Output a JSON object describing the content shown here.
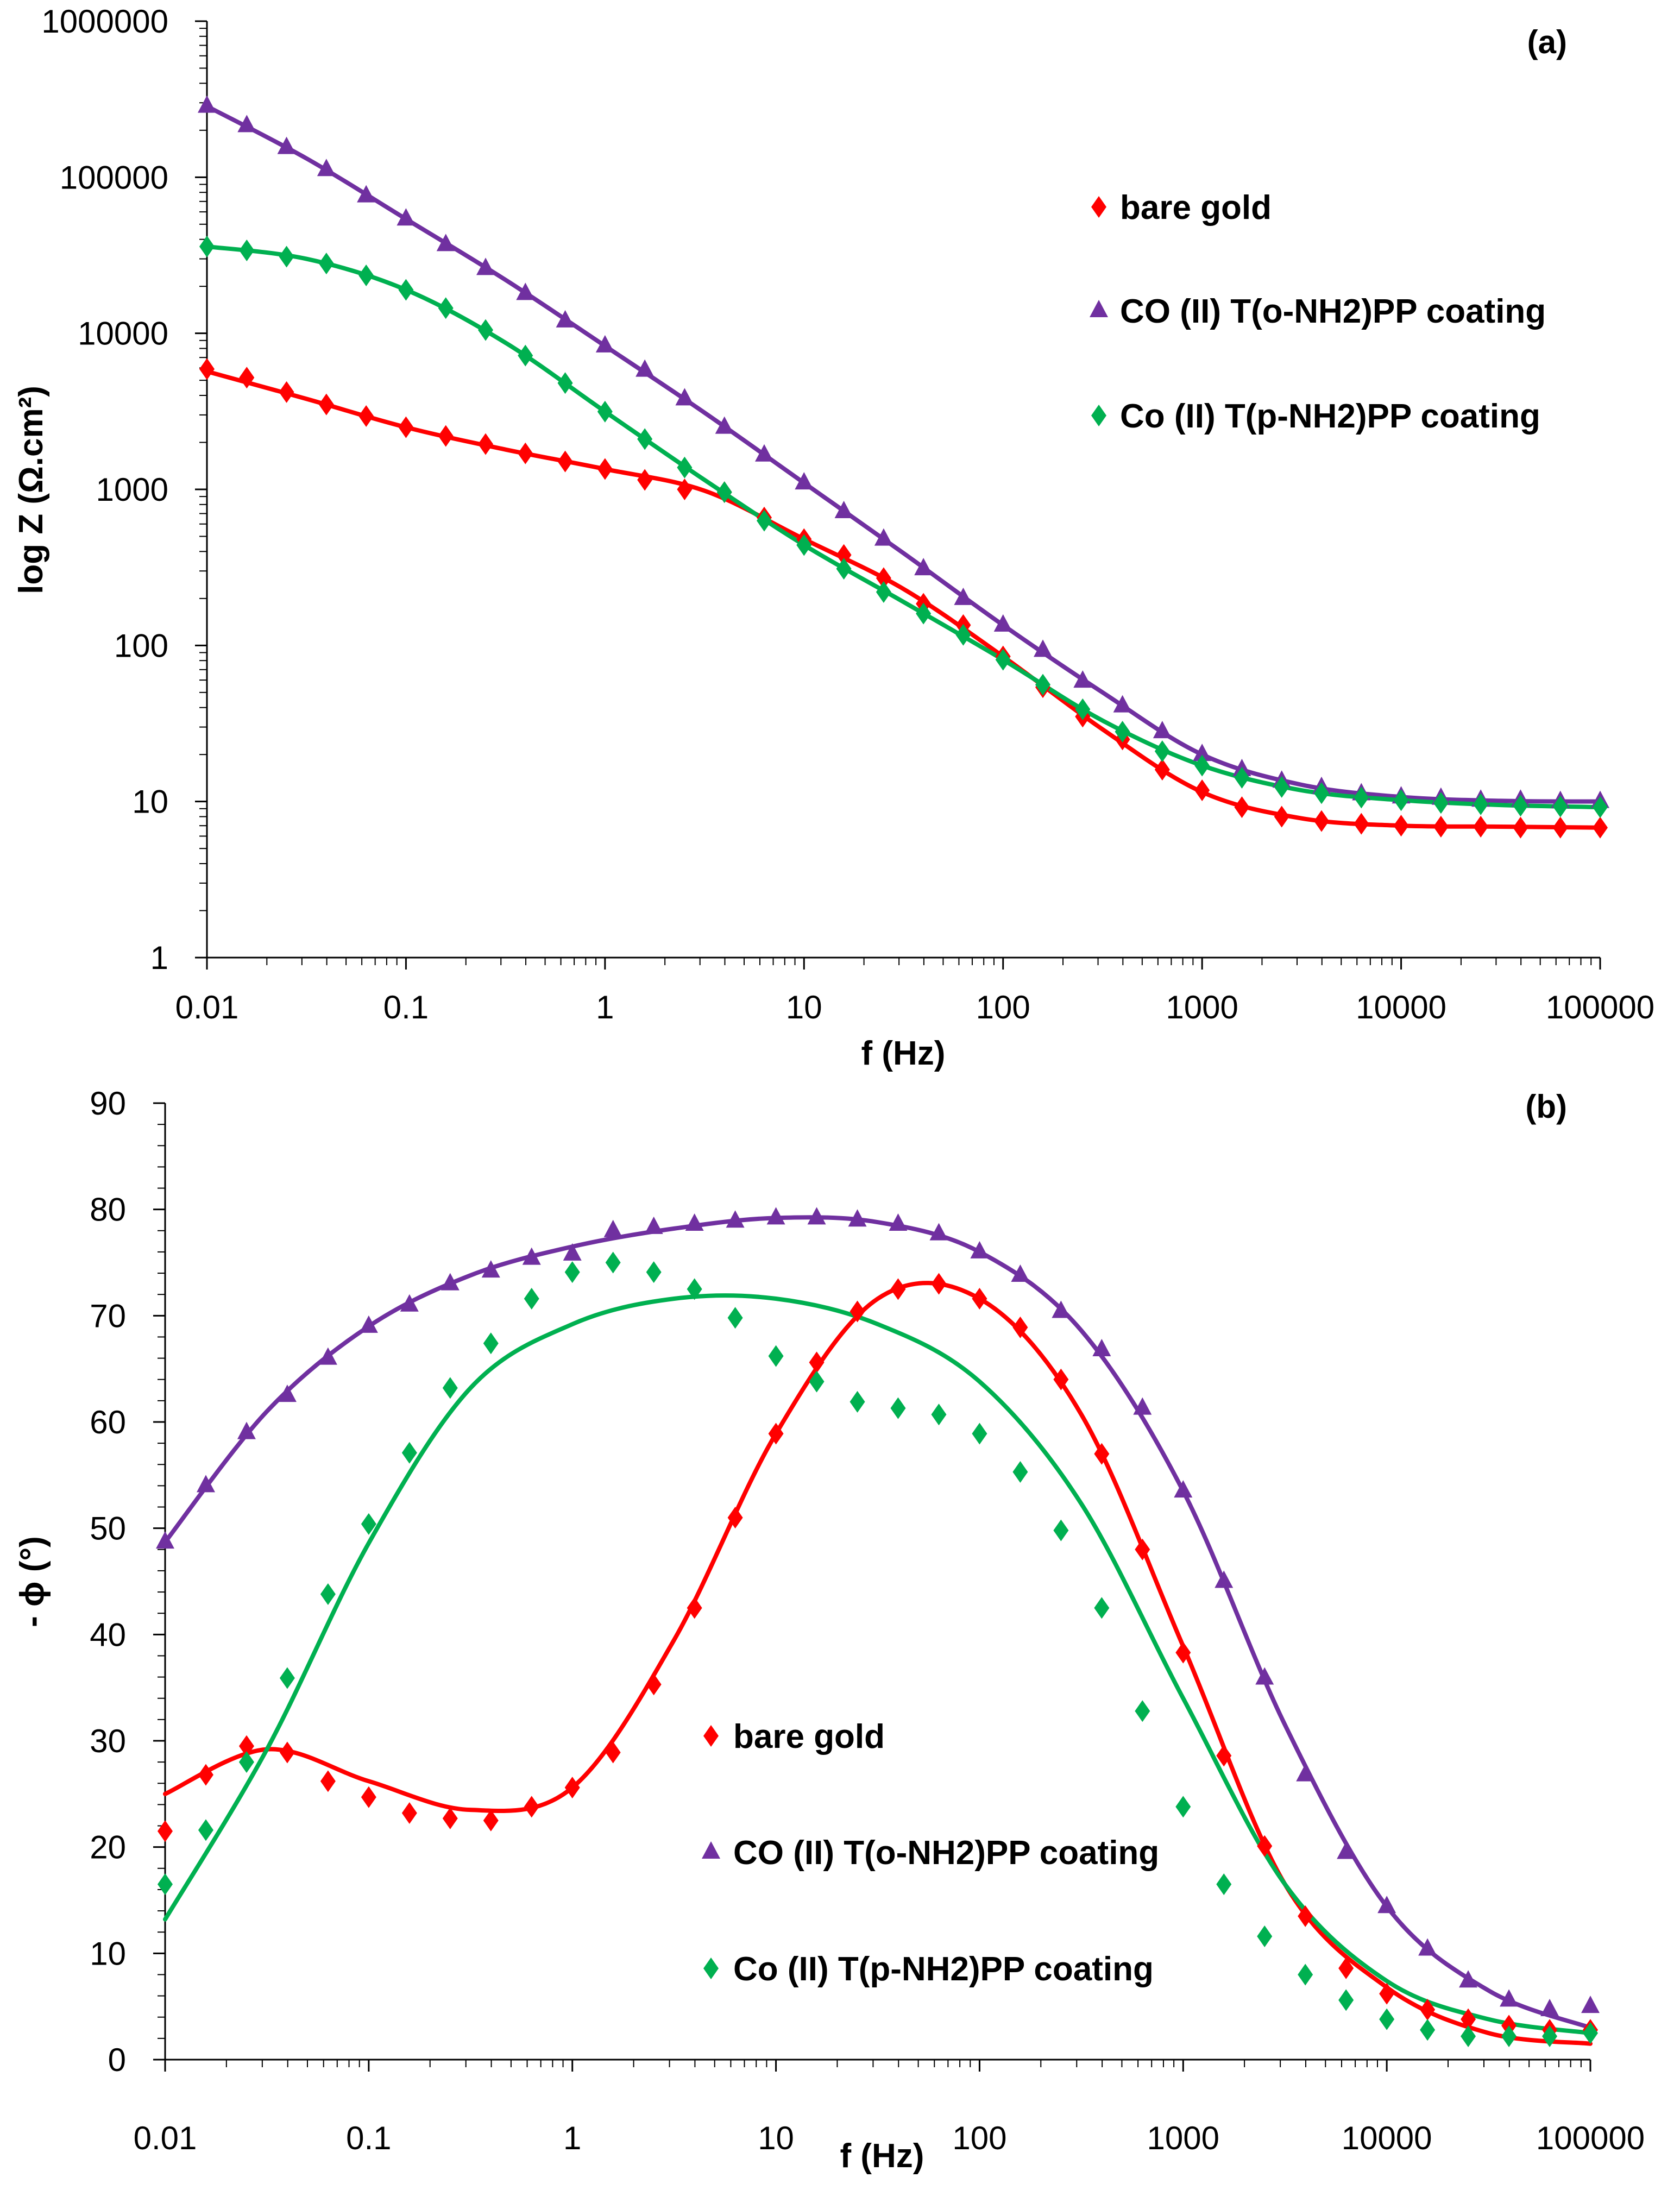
{
  "chart_data": [
    {
      "type": "scatter",
      "panel_label": "(a)",
      "xlabel": "f (Hz)",
      "ylabel": "log Z (Ω.cm²)",
      "xscale": "log",
      "yscale": "log",
      "xlim": [
        0.01,
        100000
      ],
      "ylim": [
        1,
        1000000
      ],
      "xticks": [
        "0.01",
        "0.1",
        "1",
        "10",
        "100",
        "1000",
        "10000",
        "100000"
      ],
      "yticks": [
        "1",
        "10",
        "100",
        "1000",
        "10000",
        "100000",
        "1000000"
      ],
      "legend_position": "upper-right",
      "x_log10": [
        -2,
        -1.8,
        -1.6,
        -1.4,
        -1.2,
        -1,
        -0.8,
        -0.6,
        -0.4,
        -0.2,
        0,
        0.2,
        0.4,
        0.6,
        0.8,
        1,
        1.2,
        1.4,
        1.6,
        1.8,
        2,
        2.2,
        2.4,
        2.6,
        2.8,
        3,
        3.2,
        3.4,
        3.6,
        3.8,
        4,
        4.2,
        4.4,
        4.6,
        4.8,
        5
      ],
      "fit_x_log10": [
        -2,
        -1.5,
        -1,
        -0.5,
        0,
        0.5,
        1,
        1.5,
        2,
        2.5,
        3,
        3.5,
        4,
        4.5,
        5
      ],
      "series": [
        {
          "name": "bare gold",
          "marker": "diamond",
          "color": "#ff0000",
          "values": [
            5900,
            5200,
            4200,
            3500,
            2950,
            2500,
            2200,
            1950,
            1700,
            1510,
            1350,
            1150,
            1000,
            960,
            660,
            480,
            380,
            270,
            185,
            135,
            85,
            54,
            35,
            25,
            16,
            11.8,
            9.2,
            8.0,
            7.5,
            7.2,
            7.0,
            6.9,
            6.9,
            6.8,
            6.8,
            6.8
          ],
          "fit": [
            5700,
            3800,
            2500,
            1800,
            1350,
            980,
            480,
            230,
            85,
            29,
            11.5,
            7.8,
            7.0,
            6.9,
            6.8
          ]
        },
        {
          "name": "CO (II) T(o-NH2)PP coating",
          "marker": "triangle",
          "color": "#7030a0",
          "values": [
            285000,
            214000,
            155000,
            112000,
            76000,
            54000,
            37000,
            26000,
            18000,
            12000,
            8300,
            5800,
            3800,
            2500,
            1660,
            1100,
            720,
            480,
            310,
            200,
            135,
            93,
            59,
            41,
            28,
            20,
            16,
            13.5,
            12.3,
            11.2,
            10.7,
            10.5,
            10.2,
            10.2,
            10.0,
            10.0
          ],
          "fit": [
            285000,
            132000,
            54000,
            22000,
            8300,
            3100,
            1100,
            390,
            135,
            50,
            20,
            12.8,
            10.7,
            10.1,
            10
          ]
        },
        {
          "name": "Co (II) T(p-NH2)PP coating",
          "marker": "diamond",
          "color": "#00b050",
          "values": [
            36000,
            34000,
            31000,
            28000,
            23500,
            19000,
            14500,
            10500,
            7200,
            4800,
            3150,
            2100,
            1380,
            960,
            630,
            440,
            310,
            220,
            160,
            117,
            81,
            56,
            39,
            28,
            21,
            17,
            14.2,
            12.4,
            11.3,
            10.6,
            10.2,
            9.8,
            9.6,
            9.4,
            9.3,
            9.2
          ],
          "fit": [
            36000,
            30000,
            19000,
            8700,
            3150,
            1150,
            440,
            190,
            81,
            33,
            17,
            11.8,
            10.2,
            9.5,
            9.2
          ]
        }
      ]
    },
    {
      "type": "scatter",
      "panel_label": "(b)",
      "xlabel": "f (Hz)",
      "ylabel": "- ϕ (°)",
      "xscale": "log",
      "yscale": "linear",
      "xlim": [
        0.01,
        100000
      ],
      "ylim": [
        0,
        90
      ],
      "xticks": [
        "0.01",
        "0.1",
        "1",
        "10",
        "100",
        "1000",
        "10000",
        "100000"
      ],
      "yticks": [
        "0",
        "10",
        "20",
        "30",
        "40",
        "50",
        "60",
        "70",
        "80",
        "90"
      ],
      "legend_position": "lower-center",
      "x_log10": [
        -2,
        -1.8,
        -1.6,
        -1.4,
        -1.2,
        -1,
        -0.8,
        -0.6,
        -0.4,
        -0.2,
        0,
        0.2,
        0.4,
        0.6,
        0.8,
        1,
        1.2,
        1.4,
        1.6,
        1.8,
        2,
        2.2,
        2.4,
        2.6,
        2.8,
        3,
        3.2,
        3.4,
        3.6,
        3.8,
        4,
        4.2,
        4.4,
        4.6,
        4.8,
        5
      ],
      "fit_x_log10": [
        -2,
        -1.5,
        -1,
        -0.5,
        0,
        0.5,
        1,
        1.5,
        2,
        2.5,
        3,
        3.5,
        4,
        4.5,
        5
      ],
      "series": [
        {
          "name": "bare gold",
          "marker": "diamond",
          "color": "#ff0000",
          "values": [
            21.5,
            26.8,
            29.5,
            28.9,
            26.2,
            24.7,
            23.2,
            22.7,
            22.5,
            23.8,
            25.6,
            28.9,
            35.3,
            42.5,
            51,
            58.9,
            65.6,
            70.4,
            72.5,
            73,
            71.6,
            68.9,
            64,
            57,
            48,
            38.3,
            28.6,
            20.1,
            13.5,
            8.6,
            6.2,
            4.7,
            3.8,
            3.2,
            2.8,
            2.8
          ],
          "fit": [
            25,
            29.2,
            26.2,
            23.5,
            25.6,
            39.5,
            58.9,
            71.6,
            71.6,
            60.7,
            38.9,
            16.5,
            6.8,
            2.5,
            1.5
          ]
        },
        {
          "name": "CO (II) T(o-NH2)PP coating",
          "marker": "triangle",
          "color": "#7030a0",
          "values": [
            48.7,
            54,
            59,
            62.5,
            66,
            69,
            71,
            73,
            74.2,
            75.4,
            75.8,
            78,
            78.3,
            78.6,
            78.9,
            79.2,
            79.2,
            79,
            78.6,
            77.7,
            76,
            73.8,
            70.4,
            66.8,
            61.3,
            53.5,
            45,
            35.9,
            26.8,
            19.5,
            14.4,
            10.4,
            7.4,
            5.6,
            4.7,
            5
          ],
          "fit": [
            48.7,
            61,
            69,
            73.8,
            76.5,
            78.2,
            79.2,
            78.8,
            76,
            68.6,
            53.5,
            31.5,
            14.4,
            6.5,
            3
          ]
        },
        {
          "name": "Co (II) T(p-NH2)PP coating",
          "marker": "diamond",
          "color": "#00b050",
          "values": [
            16.5,
            21.6,
            28,
            35.9,
            43.8,
            50.4,
            57.1,
            63.2,
            67.4,
            71.6,
            74.1,
            75,
            74.1,
            72.5,
            69.8,
            66.2,
            63.8,
            61.9,
            61.3,
            60.7,
            58.9,
            55.3,
            49.8,
            42.5,
            32.8,
            23.8,
            16.5,
            11.6,
            8,
            5.6,
            3.8,
            2.8,
            2.2,
            2.2,
            2.2,
            2.5
          ],
          "fit": [
            13.2,
            29.2,
            48.6,
            63.2,
            69.2,
            71.6,
            71.6,
            69.2,
            63.8,
            52.3,
            34,
            16.5,
            7.4,
            3.8,
            2.5
          ]
        }
      ]
    }
  ]
}
